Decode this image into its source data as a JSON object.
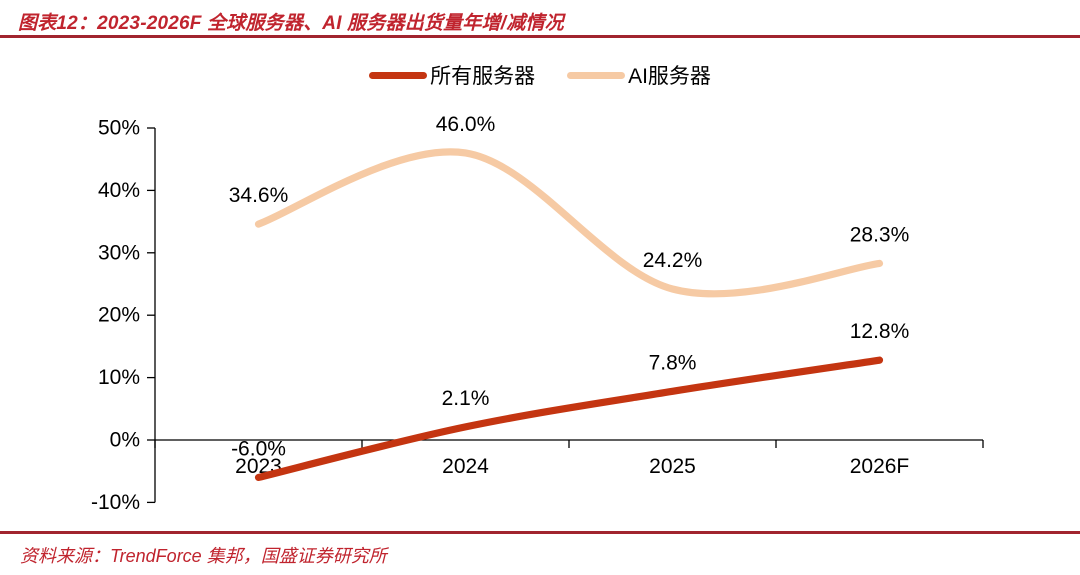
{
  "header": {
    "title": "图表12：2023-2026F 全球服务器、AI 服务器出货量年增/减情况"
  },
  "footer": {
    "source": "资料来源：TrendForce 集邦，国盛证券研究所"
  },
  "colors": {
    "title_red": "#c0242e",
    "rule_red": "#a1242e",
    "axis_black": "#000000",
    "label_black": "#000000"
  },
  "chart_data": {
    "type": "line",
    "smooth": true,
    "grid": false,
    "legend_position": "top",
    "categories": [
      "2023",
      "2024",
      "2025",
      "2026F"
    ],
    "series": [
      {
        "name": "所有服务器",
        "color": "#c43511",
        "values": [
          -6.0,
          2.1,
          7.8,
          12.8
        ],
        "labels": [
          "-6.0%",
          "2.1%",
          "7.8%",
          "12.8%"
        ]
      },
      {
        "name": "AI服务器",
        "color": "#f6caa4",
        "values": [
          34.6,
          46.0,
          24.2,
          28.3
        ],
        "labels": [
          "34.6%",
          "46.0%",
          "24.2%",
          "28.3%"
        ]
      }
    ],
    "ylim": [
      -10,
      50
    ],
    "ytick_step": 10,
    "ytick_labels": [
      "-10%",
      "0%",
      "10%",
      "20%",
      "30%",
      "40%",
      "50%"
    ]
  }
}
